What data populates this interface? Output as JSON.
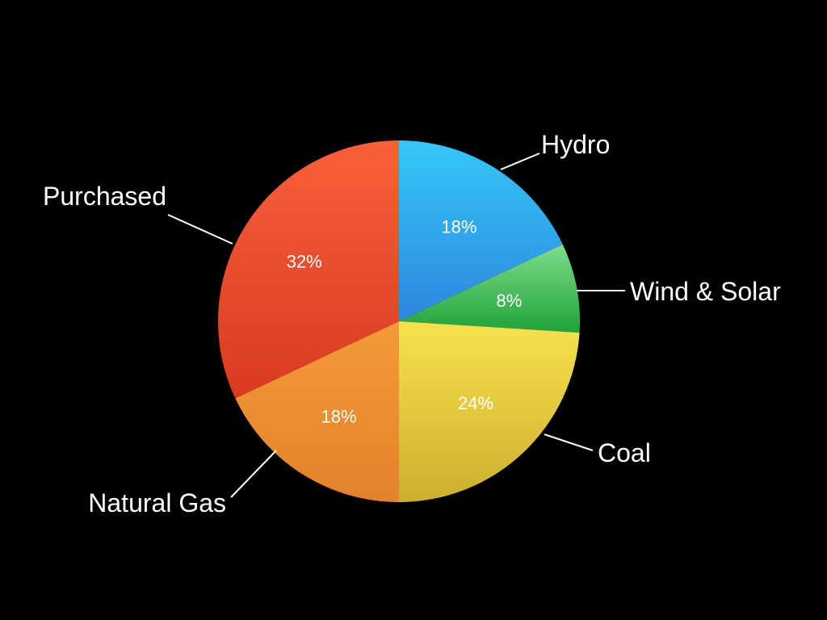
{
  "chart_data": {
    "type": "pie",
    "title": "",
    "slices": [
      {
        "name": "Hydro",
        "value": 18,
        "label": "18%",
        "color_top": "#34C8F8",
        "color_bottom": "#2E86DE"
      },
      {
        "name": "Wind & Solar",
        "value": 8,
        "label": "8%",
        "color_top": "#7EDC8A",
        "color_bottom": "#1FA33A"
      },
      {
        "name": "Coal",
        "value": 24,
        "label": "24%",
        "color_top": "#F8E24C",
        "color_bottom": "#CBAF2E"
      },
      {
        "name": "Natural Gas",
        "value": 18,
        "label": "18%",
        "color_top": "#F49A38",
        "color_bottom": "#E3822A"
      },
      {
        "name": "Purchased",
        "value": 32,
        "label": "32%",
        "color_top": "#F8603A",
        "color_bottom": "#D93A20"
      }
    ],
    "start_angle": "12 o'clock",
    "direction": "clockwise",
    "legend": "callouts"
  }
}
